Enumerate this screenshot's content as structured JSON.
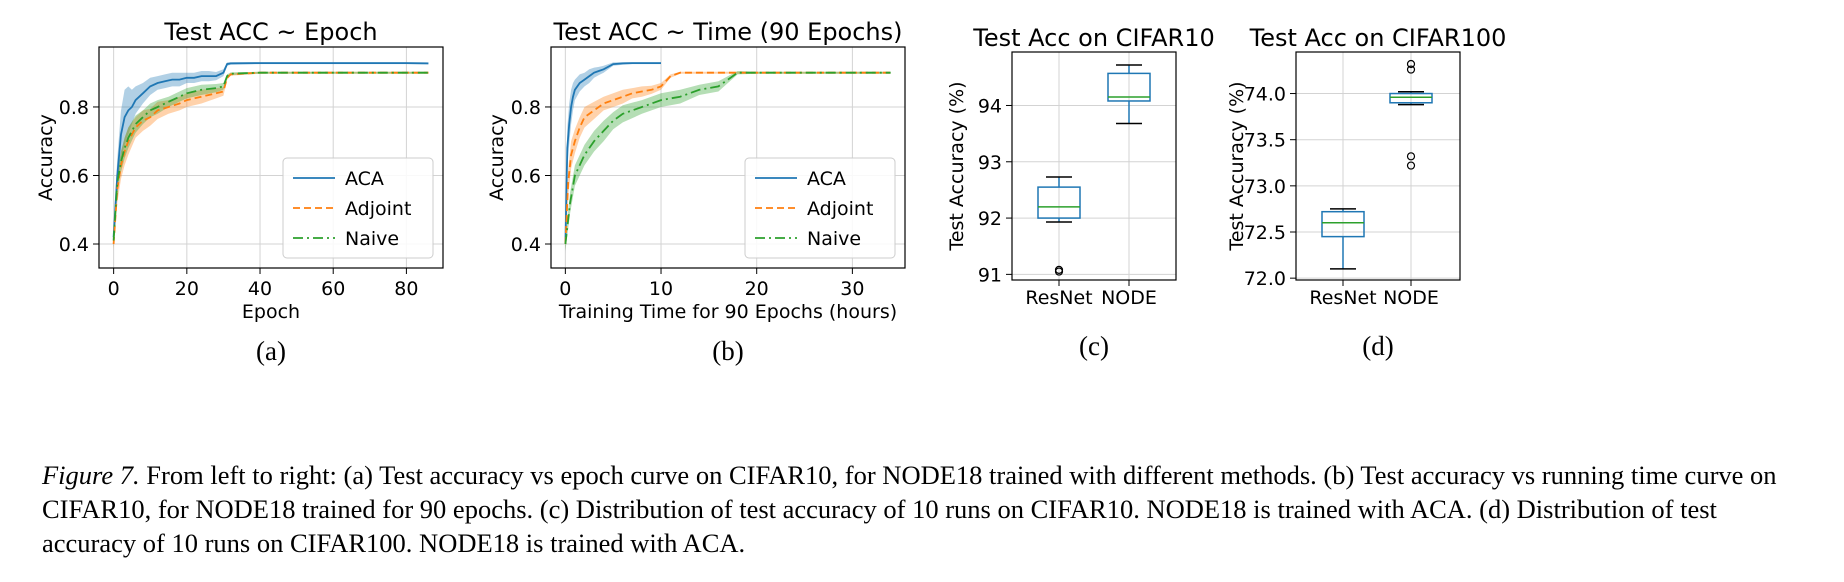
{
  "caption": {
    "label": "Figure 7.",
    "text": "From left to right: (a) Test accuracy vs epoch curve on CIFAR10, for NODE18 trained with different methods. (b) Test accuracy vs running time curve on CIFAR10, for NODE18 trained for 90 epochs. (c) Distribution of test accuracy of 10 runs on CIFAR10. NODE18 is trained with ACA. (d) Distribution of test accuracy of 10 runs on CIFAR100. NODE18 is trained with ACA."
  },
  "colors": {
    "ACA": "#1f77b4",
    "Adjoint": "#ff7f0e",
    "Naive": "#2ca02c",
    "median": "#2ca02c",
    "box": "#1f77b4",
    "grid": "#d0d0d0"
  },
  "chart_data": [
    {
      "id": "a",
      "panel_label": "(a)",
      "type": "line",
      "title": "Test ACC ~ Epoch",
      "xlabel": "Epoch",
      "ylabel": "Accuracy",
      "xlim": [
        -4,
        90
      ],
      "ylim": [
        0.33,
        0.975
      ],
      "xticks": [
        0,
        20,
        40,
        60,
        80
      ],
      "yticks": [
        0.4,
        0.6,
        0.8
      ],
      "ytick_labels": [
        "0.4",
        "0.6",
        "0.8"
      ],
      "grid": true,
      "legend": "lower-right",
      "series": [
        {
          "name": "ACA",
          "style": "solid",
          "color": "#1f77b4",
          "x": [
            0,
            1,
            2,
            3,
            4,
            5,
            6,
            8,
            10,
            12,
            14,
            16,
            18,
            20,
            22,
            24,
            26,
            28,
            30,
            31,
            32,
            40,
            50,
            60,
            70,
            80,
            86
          ],
          "y": [
            0.42,
            0.6,
            0.72,
            0.77,
            0.79,
            0.8,
            0.82,
            0.84,
            0.86,
            0.87,
            0.875,
            0.88,
            0.88,
            0.885,
            0.885,
            0.89,
            0.89,
            0.89,
            0.9,
            0.925,
            0.927,
            0.928,
            0.928,
            0.928,
            0.928,
            0.928,
            0.927
          ],
          "band": [
            0.03,
            0.05,
            0.07,
            0.08,
            0.07,
            0.05,
            0.04,
            0.03,
            0.025,
            0.02,
            0.02,
            0.02,
            0.02,
            0.015,
            0.015,
            0.015,
            0.015,
            0.012,
            0.01,
            0.005,
            0.004,
            0.003,
            0.003,
            0.003,
            0.003,
            0.003,
            0.003
          ]
        },
        {
          "name": "Adjoint",
          "style": "dashed",
          "color": "#ff7f0e",
          "x": [
            0,
            1,
            2,
            3,
            4,
            6,
            8,
            10,
            12,
            15,
            18,
            20,
            24,
            28,
            30,
            31,
            32,
            40,
            50,
            60,
            70,
            80,
            86
          ],
          "y": [
            0.4,
            0.56,
            0.63,
            0.67,
            0.7,
            0.74,
            0.76,
            0.77,
            0.79,
            0.8,
            0.81,
            0.82,
            0.83,
            0.84,
            0.845,
            0.885,
            0.895,
            0.9,
            0.9,
            0.9,
            0.9,
            0.9,
            0.9
          ],
          "band": [
            0.02,
            0.04,
            0.04,
            0.04,
            0.04,
            0.03,
            0.03,
            0.025,
            0.025,
            0.02,
            0.02,
            0.02,
            0.02,
            0.015,
            0.012,
            0.006,
            0.004,
            0.003,
            0.003,
            0.003,
            0.003,
            0.003,
            0.003
          ]
        },
        {
          "name": "Naive",
          "style": "dashdot",
          "color": "#2ca02c",
          "x": [
            0,
            1,
            2,
            3,
            4,
            6,
            8,
            10,
            12,
            15,
            18,
            20,
            24,
            28,
            30,
            31,
            32,
            40,
            50,
            60,
            70,
            80,
            86
          ],
          "y": [
            0.41,
            0.58,
            0.64,
            0.68,
            0.71,
            0.75,
            0.77,
            0.79,
            0.8,
            0.815,
            0.83,
            0.84,
            0.85,
            0.855,
            0.86,
            0.89,
            0.897,
            0.9,
            0.9,
            0.9,
            0.9,
            0.9,
            0.9
          ],
          "band": [
            0.02,
            0.03,
            0.03,
            0.03,
            0.03,
            0.025,
            0.02,
            0.02,
            0.02,
            0.015,
            0.015,
            0.015,
            0.015,
            0.012,
            0.01,
            0.005,
            0.004,
            0.003,
            0.003,
            0.003,
            0.003,
            0.003,
            0.003
          ]
        }
      ]
    },
    {
      "id": "b",
      "panel_label": "(b)",
      "type": "line",
      "title": "Test ACC ~ Time (90 Epochs)",
      "xlabel": "Training Time for 90 Epochs (hours)",
      "ylabel": "Accuracy",
      "xlim": [
        -1.5,
        35.5
      ],
      "ylim": [
        0.33,
        0.975
      ],
      "xticks": [
        0,
        10,
        20,
        30
      ],
      "yticks": [
        0.4,
        0.6,
        0.8
      ],
      "ytick_labels": [
        "0.4",
        "0.6",
        "0.8"
      ],
      "grid": true,
      "legend": "lower-right",
      "series": [
        {
          "name": "ACA",
          "style": "solid",
          "color": "#1f77b4",
          "x": [
            0,
            0.2,
            0.4,
            0.6,
            0.8,
            1,
            1.5,
            2,
            2.5,
            3,
            3.5,
            4,
            5,
            6,
            7,
            8,
            9,
            10
          ],
          "y": [
            0.4,
            0.68,
            0.75,
            0.8,
            0.83,
            0.85,
            0.87,
            0.88,
            0.89,
            0.9,
            0.905,
            0.91,
            0.925,
            0.927,
            0.928,
            0.928,
            0.928,
            0.928
          ],
          "band": [
            0.03,
            0.06,
            0.06,
            0.05,
            0.04,
            0.03,
            0.025,
            0.02,
            0.02,
            0.015,
            0.012,
            0.01,
            0.005,
            0.004,
            0.003,
            0.003,
            0.003,
            0.003
          ]
        },
        {
          "name": "Adjoint",
          "style": "dashed",
          "color": "#ff7f0e",
          "x": [
            0,
            0.3,
            0.6,
            1,
            1.5,
            2,
            3,
            4,
            5,
            6,
            7,
            8,
            9,
            10,
            11,
            12,
            15,
            20,
            25,
            30,
            34
          ],
          "y": [
            0.4,
            0.58,
            0.66,
            0.7,
            0.74,
            0.77,
            0.79,
            0.81,
            0.82,
            0.83,
            0.84,
            0.845,
            0.85,
            0.86,
            0.89,
            0.9,
            0.9,
            0.9,
            0.9,
            0.9,
            0.9
          ],
          "band": [
            0.02,
            0.04,
            0.04,
            0.035,
            0.03,
            0.03,
            0.025,
            0.02,
            0.02,
            0.02,
            0.015,
            0.015,
            0.012,
            0.01,
            0.005,
            0.003,
            0.003,
            0.003,
            0.003,
            0.003,
            0.003
          ]
        },
        {
          "name": "Naive",
          "style": "dashdot",
          "color": "#2ca02c",
          "x": [
            0,
            0.5,
            1,
            2,
            3,
            4,
            5,
            6,
            8,
            10,
            12,
            14,
            16,
            18,
            20,
            22,
            24,
            26,
            28,
            30,
            32,
            34
          ],
          "y": [
            0.4,
            0.52,
            0.6,
            0.66,
            0.7,
            0.73,
            0.76,
            0.78,
            0.8,
            0.82,
            0.83,
            0.85,
            0.86,
            0.9,
            0.9,
            0.9,
            0.9,
            0.9,
            0.9,
            0.9,
            0.9,
            0.9
          ],
          "band": [
            0.02,
            0.03,
            0.03,
            0.03,
            0.03,
            0.03,
            0.025,
            0.025,
            0.02,
            0.02,
            0.02,
            0.015,
            0.015,
            0.005,
            0.003,
            0.003,
            0.003,
            0.003,
            0.003,
            0.003,
            0.003,
            0.003
          ]
        }
      ]
    },
    {
      "id": "c",
      "panel_label": "(c)",
      "type": "box",
      "title": "Test Acc on CIFAR10",
      "xlabel": "",
      "ylabel": "Test Accuracy (%)",
      "ylim": [
        90.9,
        94.95
      ],
      "yticks": [
        91,
        92,
        93,
        94
      ],
      "ytick_labels": [
        "91",
        "92",
        "93",
        "94"
      ],
      "grid": true,
      "categories": [
        "ResNet",
        "NODE"
      ],
      "boxes": [
        {
          "name": "ResNet",
          "whislo": 91.93,
          "q1": 92.0,
          "med": 92.2,
          "q3": 92.55,
          "whishi": 92.73,
          "fliers": [
            91.05,
            91.08
          ]
        },
        {
          "name": "NODE",
          "whislo": 93.68,
          "q1": 94.08,
          "med": 94.15,
          "q3": 94.57,
          "whishi": 94.72,
          "fliers": []
        }
      ]
    },
    {
      "id": "d",
      "panel_label": "(d)",
      "type": "box",
      "title": "Test Acc on CIFAR100",
      "xlabel": "",
      "ylabel": "Test Accuracy (%)",
      "ylim": [
        71.98,
        74.45
      ],
      "yticks": [
        72.0,
        72.5,
        73.0,
        73.5,
        74.0
      ],
      "ytick_labels": [
        "72.0",
        "72.5",
        "73.0",
        "73.5",
        "74.0"
      ],
      "grid": true,
      "categories": [
        "ResNet",
        "NODE"
      ],
      "boxes": [
        {
          "name": "ResNet",
          "whislo": 72.1,
          "q1": 72.45,
          "med": 72.6,
          "q3": 72.72,
          "whishi": 72.75,
          "fliers": []
        },
        {
          "name": "NODE",
          "whislo": 73.88,
          "q1": 73.9,
          "med": 73.96,
          "q3": 74.0,
          "whishi": 74.02,
          "fliers": [
            73.22,
            73.32,
            74.26,
            74.32
          ]
        }
      ]
    }
  ]
}
